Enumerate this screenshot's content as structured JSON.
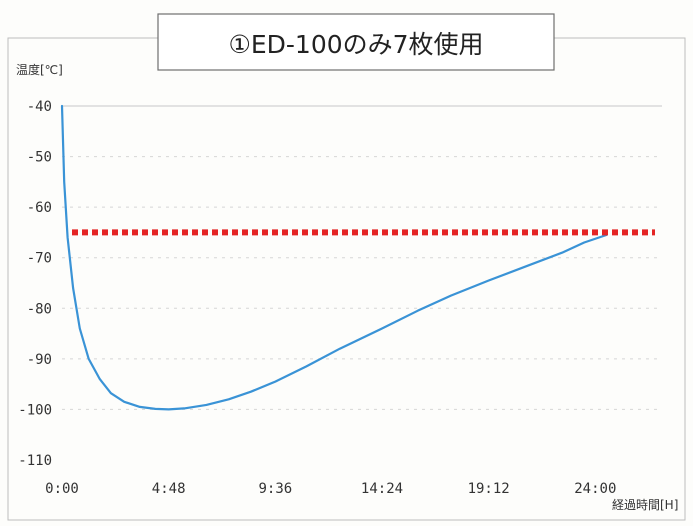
{
  "chart_data": {
    "type": "line",
    "title": "①ED-100のみ7枚使用",
    "ylabel": "温度[℃]",
    "xlabel": "経過時間[H]",
    "xlim": [
      0,
      27
    ],
    "ylim": [
      -110,
      -40
    ],
    "x_ticks": [
      "0:00",
      "4:48",
      "9:36",
      "14:24",
      "19:12",
      "24:00"
    ],
    "x_tick_values": [
      0,
      4.8,
      9.6,
      14.4,
      19.2,
      24.0
    ],
    "y_ticks": [
      -40,
      -50,
      -60,
      -70,
      -80,
      -90,
      -100,
      -110
    ],
    "grid": true,
    "series": [
      {
        "color": "#3a93d6",
        "x": [
          0,
          0.1,
          0.25,
          0.5,
          0.8,
          1.2,
          1.7,
          2.2,
          2.8,
          3.5,
          4.2,
          4.8,
          5.5,
          6.5,
          7.5,
          8.5,
          9.6,
          11,
          12.5,
          14.4,
          16,
          17.5,
          19.2,
          21,
          22.5,
          23.5,
          24.5
        ],
        "y": [
          -40,
          -55,
          -66,
          -76,
          -84,
          -90,
          -94,
          -96.8,
          -98.5,
          -99.5,
          -99.9,
          -100,
          -99.8,
          -99.1,
          -98,
          -96.5,
          -94.5,
          -91.5,
          -88,
          -84,
          -80.5,
          -77.5,
          -74.5,
          -71.5,
          -69,
          -67,
          -65.5
        ]
      }
    ],
    "threshold": {
      "value": -65,
      "color": "#e42424"
    }
  }
}
